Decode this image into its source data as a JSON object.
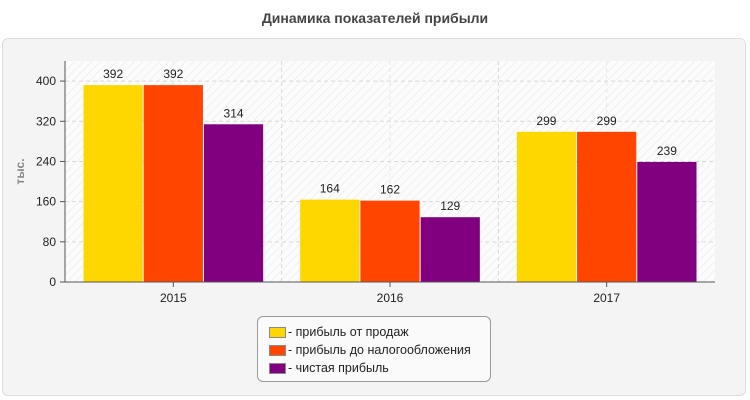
{
  "title": "Динамика показателей прибыли",
  "chart_data": {
    "type": "bar",
    "title": "Динамика показателей прибыли",
    "xlabel": "",
    "ylabel": "тыс.",
    "ylim": [
      0,
      440
    ],
    "yticks": [
      0,
      80,
      160,
      240,
      320,
      400
    ],
    "categories": [
      "2015",
      "2016",
      "2017"
    ],
    "series": [
      {
        "name": "- прибыль от продаж",
        "color": "#FFD700",
        "values": [
          392,
          164,
          299
        ]
      },
      {
        "name": "- прибыль до налогообложения",
        "color": "#FF4500",
        "values": [
          392,
          162,
          299
        ]
      },
      {
        "name": "- чистая прибыль",
        "color": "#800080",
        "values": [
          314,
          129,
          239
        ]
      }
    ],
    "grid": true,
    "legend_position": "bottom-center"
  }
}
